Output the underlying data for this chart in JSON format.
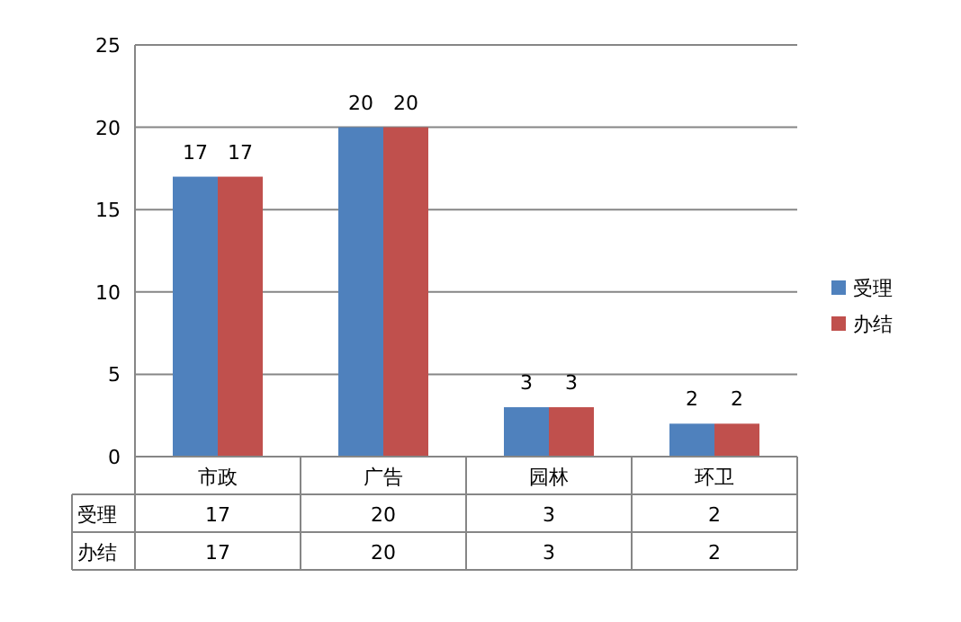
{
  "chart_data": {
    "type": "bar",
    "categories": [
      "市政",
      "广告",
      "园林",
      "环卫"
    ],
    "series": [
      {
        "name": "受理",
        "color": "#4f81bd",
        "values": [
          17,
          20,
          3,
          2
        ],
        "value_labels": [
          "17",
          "20",
          "3",
          "2"
        ]
      },
      {
        "name": "办结",
        "color": "#c0504d",
        "values": [
          17,
          20,
          3,
          2
        ],
        "value_labels": [
          "17",
          "20",
          "3",
          "2"
        ]
      }
    ],
    "annotations": [
      "17",
      "20",
      "3",
      "2",
      "17",
      "20",
      "3",
      "2"
    ],
    "ylim": [
      0,
      25
    ],
    "yticks": [
      0,
      5,
      10,
      15,
      20,
      25
    ],
    "grid": "y",
    "legend": "right"
  }
}
